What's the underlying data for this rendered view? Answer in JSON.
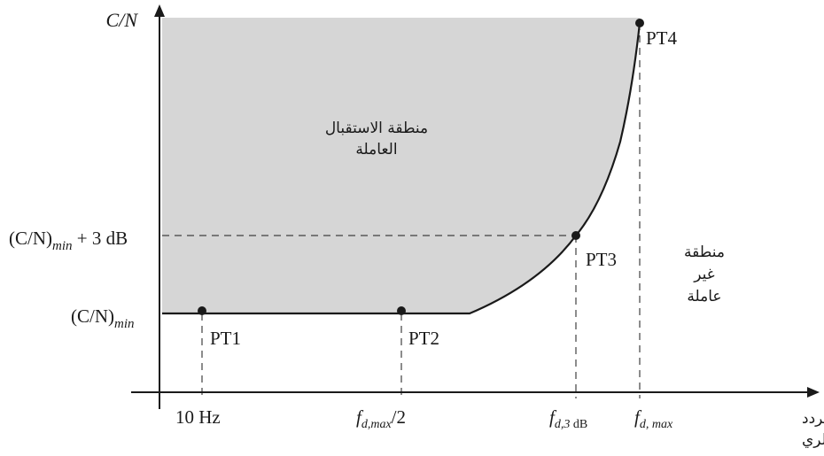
{
  "axes": {
    "y_label": "C/N",
    "x_label_line1": "التردد",
    "x_label_line2": "الدوبلري"
  },
  "y_ticks": {
    "cn_min_3db_main": "(C/N)",
    "cn_min_3db_sub": "min",
    "cn_min_3db_tail": " + 3 dB",
    "cn_min_main": "(C/N)",
    "cn_min_sub": "min"
  },
  "x_ticks": {
    "hz10": "10 Hz",
    "fdmax_half_f": "f",
    "fdmax_half_sub": "d,max",
    "fdmax_half_tail": "/2",
    "fd3db_f": "f",
    "fd3db_sub_d": "d,3",
    "fd3db_sub_db": " dB",
    "fdmax_f": "f",
    "fdmax_sub": "d, max"
  },
  "points": {
    "pt1": "PT1",
    "pt2": "PT2",
    "pt3": "PT3",
    "pt4": "PT4"
  },
  "regions": {
    "working_line1": "منطقة الاستقبال",
    "working_line2": "العاملة",
    "nonworking_line1": "منطقة",
    "nonworking_line2": "غير",
    "nonworking_line3": "عاملة"
  },
  "colors": {
    "region_fill": "#d6d6d6",
    "line": "#1a1a1a"
  }
}
